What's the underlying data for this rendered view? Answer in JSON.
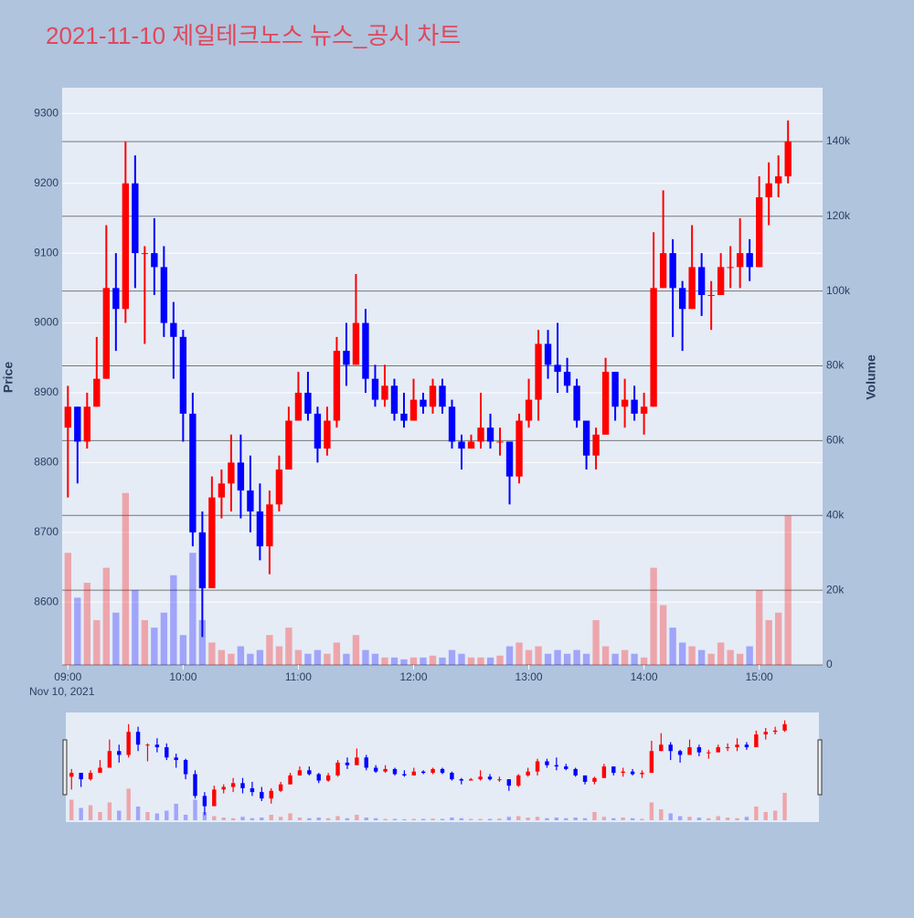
{
  "chart_data": {
    "type": "candlestick",
    "title": "2021-11-10 제일테크노스 뉴스_공시 차트",
    "yaxis_title": "Price",
    "y2axis_title": "Volume",
    "x_date_label": "Nov 10, 2021",
    "increasing_color": "#ff0000",
    "decreasing_color": "#0000ff",
    "rangeslider": true,
    "x": [
      "2021-11-10 09:00",
      "2021-11-10 09:05",
      "2021-11-10 09:10",
      "2021-11-10 09:15",
      "2021-11-10 09:20",
      "2021-11-10 09:25",
      "2021-11-10 09:30",
      "2021-11-10 09:35",
      "2021-11-10 09:40",
      "2021-11-10 09:45",
      "2021-11-10 09:50",
      "2021-11-10 09:55",
      "2021-11-10 10:00",
      "2021-11-10 10:05",
      "2021-11-10 10:10",
      "2021-11-10 10:15",
      "2021-11-10 10:20",
      "2021-11-10 10:25",
      "2021-11-10 10:30",
      "2021-11-10 10:35",
      "2021-11-10 10:40",
      "2021-11-10 10:45",
      "2021-11-10 10:50",
      "2021-11-10 10:55",
      "2021-11-10 11:00",
      "2021-11-10 11:05",
      "2021-11-10 11:10",
      "2021-11-10 11:15",
      "2021-11-10 11:20",
      "2021-11-10 11:25",
      "2021-11-10 11:30",
      "2021-11-10 11:35",
      "2021-11-10 11:40",
      "2021-11-10 11:45",
      "2021-11-10 11:50",
      "2021-11-10 11:55",
      "2021-11-10 12:00",
      "2021-11-10 12:05",
      "2021-11-10 12:10",
      "2021-11-10 12:15",
      "2021-11-10 12:20",
      "2021-11-10 12:25",
      "2021-11-10 12:30",
      "2021-11-10 12:35",
      "2021-11-10 12:40",
      "2021-11-10 12:45",
      "2021-11-10 12:50",
      "2021-11-10 12:55",
      "2021-11-10 13:00",
      "2021-11-10 13:05",
      "2021-11-10 13:10",
      "2021-11-10 13:15",
      "2021-11-10 13:20",
      "2021-11-10 13:25",
      "2021-11-10 13:30",
      "2021-11-10 13:35",
      "2021-11-10 13:40",
      "2021-11-10 13:45",
      "2021-11-10 13:50",
      "2021-11-10 13:55",
      "2021-11-10 14:00",
      "2021-11-10 14:05",
      "2021-11-10 14:10",
      "2021-11-10 14:15",
      "2021-11-10 14:20",
      "2021-11-10 14:25",
      "2021-11-10 14:30",
      "2021-11-10 14:35",
      "2021-11-10 14:40",
      "2021-11-10 14:45",
      "2021-11-10 14:50",
      "2021-11-10 14:55",
      "2021-11-10 15:00",
      "2021-11-10 15:05",
      "2021-11-10 15:10",
      "2021-11-10 15:15"
    ],
    "open": [
      8850,
      8880,
      8830,
      8880,
      8920,
      9050,
      9020,
      9200,
      9100,
      9100,
      9080,
      9000,
      8980,
      8870,
      8700,
      8620,
      8750,
      8770,
      8800,
      8760,
      8730,
      8680,
      8740,
      8790,
      8860,
      8900,
      8870,
      8820,
      8860,
      8960,
      8940,
      9000,
      8920,
      8890,
      8910,
      8870,
      8860,
      8890,
      8880,
      8910,
      8880,
      8830,
      8820,
      8830,
      8850,
      8830,
      8830,
      8780,
      8860,
      8890,
      8970,
      8940,
      8930,
      8910,
      8860,
      8810,
      8840,
      8930,
      8880,
      8890,
      8870,
      8880,
      9050,
      9100,
      9050,
      9020,
      9080,
      9040,
      9040,
      9080,
      9080,
      9100,
      9080,
      9180,
      9200,
      9210
    ],
    "high": [
      8910,
      8880,
      8900,
      8980,
      9140,
      9100,
      9260,
      9240,
      9110,
      9150,
      9110,
      9030,
      8990,
      8900,
      8730,
      8780,
      8790,
      8840,
      8840,
      8810,
      8770,
      8760,
      8810,
      8880,
      8930,
      8930,
      8880,
      8880,
      8980,
      9000,
      9070,
      9020,
      8940,
      8940,
      8920,
      8900,
      8920,
      8900,
      8920,
      8920,
      8890,
      8840,
      8840,
      8900,
      8870,
      8850,
      8830,
      8870,
      8920,
      8990,
      8990,
      9000,
      8950,
      8920,
      8860,
      8850,
      8950,
      8930,
      8920,
      8910,
      8900,
      9130,
      9190,
      9120,
      9060,
      9140,
      9100,
      9060,
      9100,
      9110,
      9150,
      9120,
      9210,
      9230,
      9240,
      9290
    ],
    "low": [
      8750,
      8770,
      8820,
      8880,
      8920,
      8960,
      9000,
      9050,
      8970,
      9040,
      8980,
      8920,
      8830,
      8680,
      8550,
      8620,
      8720,
      8730,
      8720,
      8700,
      8660,
      8640,
      8730,
      8790,
      8860,
      8860,
      8800,
      8810,
      8850,
      8910,
      8940,
      8900,
      8880,
      8880,
      8860,
      8850,
      8860,
      8870,
      8870,
      8870,
      8820,
      8790,
      8820,
      8820,
      8820,
      8810,
      8740,
      8770,
      8850,
      8860,
      8920,
      8900,
      8900,
      8850,
      8790,
      8790,
      8840,
      8860,
      8850,
      8860,
      8840,
      8880,
      9050,
      8980,
      8960,
      9020,
      9010,
      8990,
      9040,
      9050,
      9050,
      9060,
      9080,
      9140,
      9180,
      9200
    ],
    "close": [
      8880,
      8830,
      8880,
      8920,
      9050,
      9020,
      9200,
      9100,
      9100,
      9080,
      9000,
      8980,
      8870,
      8700,
      8620,
      8750,
      8770,
      8800,
      8760,
      8730,
      8680,
      8740,
      8790,
      8860,
      8900,
      8870,
      8820,
      8860,
      8960,
      8940,
      9000,
      8920,
      8890,
      8910,
      8870,
      8860,
      8890,
      8880,
      8910,
      8880,
      8830,
      8820,
      8830,
      8850,
      8830,
      8830,
      8780,
      8860,
      8890,
      8970,
      8940,
      8930,
      8910,
      8860,
      8810,
      8840,
      8930,
      8880,
      8890,
      8870,
      8880,
      9050,
      9100,
      9050,
      9020,
      9080,
      9040,
      9040,
      9080,
      9080,
      9100,
      9080,
      9180,
      9200,
      9210,
      9260
    ],
    "volume": [
      30000,
      18000,
      22000,
      12000,
      26000,
      14000,
      46000,
      20000,
      12000,
      10000,
      14000,
      24000,
      8000,
      30000,
      12000,
      6000,
      4000,
      3000,
      5000,
      3000,
      4000,
      8000,
      5000,
      10000,
      4000,
      3000,
      4000,
      3000,
      6000,
      3000,
      8000,
      4000,
      3000,
      2000,
      2000,
      1500,
      2000,
      2000,
      2500,
      2000,
      4000,
      3000,
      2000,
      2000,
      2000,
      2500,
      5000,
      6000,
      4000,
      5000,
      3000,
      4000,
      3000,
      4000,
      3000,
      12000,
      5000,
      3000,
      4000,
      3000,
      2000,
      26000,
      16000,
      10000,
      6000,
      5000,
      4000,
      3000,
      6000,
      4000,
      3000,
      5000,
      20000,
      12000,
      14000,
      40000
    ],
    "xlim": [
      "2021-11-10 08:57",
      "2021-11-10 15:33"
    ],
    "xticks": [
      {
        "value": "2021-11-10 09:00",
        "label": "09:00"
      },
      {
        "value": "2021-11-10 10:00",
        "label": "10:00"
      },
      {
        "value": "2021-11-10 11:00",
        "label": "11:00"
      },
      {
        "value": "2021-11-10 12:00",
        "label": "12:00"
      },
      {
        "value": "2021-11-10 13:00",
        "label": "13:00"
      },
      {
        "value": "2021-11-10 14:00",
        "label": "14:00"
      },
      {
        "value": "2021-11-10 15:00",
        "label": "15:00"
      }
    ],
    "ylim": [
      8510,
      9337
    ],
    "yticks": [
      8600,
      8700,
      8800,
      8900,
      9000,
      9100,
      9200,
      9300
    ],
    "y2lim": [
      0,
      154400
    ],
    "y2ticks": [
      0,
      {
        "value": 20000,
        "label": "20k"
      },
      {
        "value": 40000,
        "label": "40k"
      },
      {
        "value": 60000,
        "label": "60k"
      },
      {
        "value": 80000,
        "label": "80k"
      },
      {
        "value": 100000,
        "label": "100k"
      },
      {
        "value": 120000,
        "label": "120k"
      },
      {
        "value": 140000,
        "label": "140k"
      }
    ],
    "grid": true
  }
}
